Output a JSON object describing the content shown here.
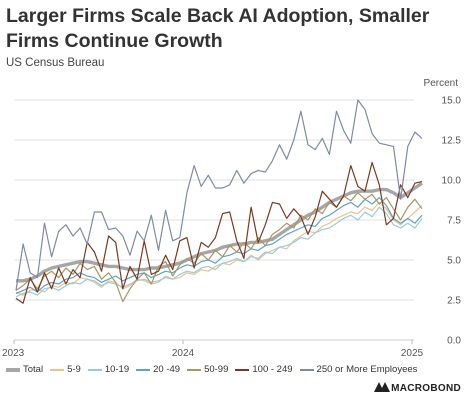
{
  "title": "Larger Firms Scale Back AI Adoption, Smaller Firms Continue Growth",
  "subtitle": "US Census Bureau",
  "unit_label": "Percent",
  "brand": "MACROBOND",
  "chart_data": {
    "type": "line",
    "x_tick_labels": [
      "2023",
      "2024",
      "2025"
    ],
    "ylim": [
      0,
      15
    ],
    "yticks": [
      "0.0",
      "2.5",
      "5.0",
      "7.5",
      "10.0",
      "12.5",
      "15.0"
    ],
    "y_axis_side": "right",
    "grid": true,
    "legend_position": "bottom",
    "series": [
      {
        "name": "Total",
        "color": "#a6a6a6",
        "width": 3.4,
        "values": [
          3.7,
          3.7,
          3.8,
          4.0,
          4.3,
          4.5,
          4.6,
          4.7,
          4.8,
          4.9,
          4.9,
          4.8,
          4.7,
          4.6,
          4.6,
          4.5,
          4.4,
          4.4,
          4.4,
          4.5,
          4.5,
          4.6,
          4.7,
          4.8,
          5.0,
          5.2,
          5.4,
          5.5,
          5.6,
          5.8,
          5.9,
          6.0,
          6.0,
          6.1,
          6.1,
          6.2,
          6.3,
          6.6,
          6.9,
          7.2,
          7.5,
          7.8,
          8.0,
          8.3,
          8.6,
          8.8,
          9.0,
          9.2,
          9.3,
          9.3,
          9.3,
          9.4,
          9.4,
          9.2,
          8.9,
          9.2,
          9.5,
          9.8
        ]
      },
      {
        "name": "5-9",
        "color": "#f0c08a",
        "width": 1.2,
        "values": [
          3.0,
          2.8,
          3.1,
          3.2,
          3.0,
          3.4,
          3.3,
          3.6,
          3.5,
          3.9,
          3.8,
          3.6,
          3.3,
          3.7,
          3.6,
          3.2,
          3.4,
          3.8,
          3.7,
          3.5,
          3.6,
          4.0,
          3.8,
          3.9,
          4.2,
          4.1,
          4.4,
          4.3,
          4.6,
          4.8,
          4.7,
          5.0,
          4.9,
          5.3,
          5.0,
          5.4,
          5.6,
          5.8,
          5.7,
          6.2,
          6.5,
          6.8,
          6.7,
          7.1,
          7.3,
          7.6,
          7.8,
          8.0,
          7.9,
          8.3,
          8.1,
          8.6,
          8.2,
          7.5,
          7.2,
          7.6,
          8.0,
          8.4
        ]
      },
      {
        "name": "10-19",
        "color": "#93cde0",
        "width": 1.2,
        "values": [
          2.7,
          2.9,
          3.0,
          2.8,
          3.2,
          3.3,
          3.1,
          3.4,
          3.6,
          3.5,
          3.8,
          3.7,
          3.4,
          3.6,
          3.5,
          3.3,
          3.5,
          3.7,
          3.8,
          3.6,
          3.7,
          3.9,
          3.8,
          4.1,
          4.3,
          4.2,
          4.5,
          4.6,
          4.4,
          4.8,
          4.9,
          5.1,
          4.9,
          5.2,
          5.1,
          5.5,
          5.4,
          5.8,
          5.9,
          6.1,
          6.4,
          6.3,
          6.7,
          6.9,
          7.0,
          7.3,
          7.6,
          7.8,
          7.5,
          8.0,
          7.7,
          8.3,
          7.9,
          7.2,
          7.0,
          7.3,
          7.0,
          7.6
        ]
      },
      {
        "name": "20 -49",
        "color": "#5da3c9",
        "width": 1.2,
        "values": [
          2.9,
          3.1,
          3.3,
          3.0,
          3.4,
          3.6,
          3.5,
          3.8,
          3.9,
          4.2,
          4.0,
          3.9,
          3.6,
          3.8,
          4.0,
          3.7,
          3.9,
          4.1,
          4.2,
          3.9,
          4.1,
          4.3,
          4.2,
          4.5,
          4.7,
          4.6,
          4.9,
          5.0,
          4.8,
          5.2,
          5.3,
          5.5,
          5.4,
          5.7,
          5.6,
          5.9,
          6.0,
          6.3,
          6.6,
          6.8,
          7.0,
          7.2,
          7.1,
          7.6,
          7.8,
          8.1,
          8.4,
          8.6,
          8.3,
          8.8,
          8.5,
          8.9,
          8.4,
          7.6,
          7.3,
          7.6,
          7.3,
          7.8
        ]
      },
      {
        "name": "50-99",
        "color": "#a89664",
        "width": 1.2,
        "values": [
          3.1,
          3.4,
          3.8,
          3.2,
          4.0,
          4.3,
          3.9,
          4.5,
          4.1,
          4.8,
          4.4,
          4.6,
          3.8,
          4.2,
          3.6,
          2.4,
          3.2,
          3.8,
          4.2,
          3.5,
          4.6,
          4.9,
          4.0,
          4.7,
          5.1,
          4.8,
          5.4,
          5.0,
          5.6,
          5.2,
          5.9,
          5.5,
          6.1,
          5.7,
          6.4,
          5.9,
          6.6,
          6.9,
          7.3,
          7.0,
          7.8,
          7.5,
          8.2,
          7.9,
          8.6,
          8.3,
          9.0,
          8.7,
          9.2,
          8.8,
          9.1,
          8.5,
          8.9,
          8.2,
          7.5,
          8.3,
          8.8,
          8.2
        ]
      },
      {
        "name": "100 - 249",
        "color": "#7a3a20",
        "width": 1.2,
        "values": [
          2.6,
          2.3,
          3.9,
          3.0,
          4.2,
          3.2,
          4.5,
          3.5,
          4.4,
          3.9,
          6.1,
          5.5,
          4.3,
          6.5,
          6.1,
          3.2,
          4.6,
          3.8,
          6.2,
          4.1,
          4.3,
          5.3,
          4.4,
          6.2,
          6.4,
          4.5,
          6.1,
          5.8,
          6.4,
          7.9,
          8.0,
          6.2,
          5.1,
          8.3,
          6.1,
          7.2,
          8.6,
          8.5,
          7.6,
          8.2,
          7.7,
          6.6,
          7.7,
          9.3,
          8.8,
          8.3,
          9.0,
          10.9,
          9.6,
          9.3,
          11.1,
          9.7,
          7.2,
          7.6,
          9.7,
          8.9,
          9.8,
          9.9
        ]
      },
      {
        "name": "250 or More Employees",
        "color": "#7f8aa6",
        "width": 1.2,
        "values": [
          3.1,
          6.0,
          4.2,
          3.9,
          7.3,
          5.2,
          6.8,
          7.2,
          6.5,
          7.0,
          6.0,
          8.0,
          8.0,
          6.9,
          7.0,
          6.5,
          5.3,
          6.8,
          6.2,
          7.8,
          5.6,
          8.1,
          6.2,
          6.4,
          9.2,
          10.9,
          9.6,
          10.3,
          9.5,
          9.5,
          9.7,
          10.6,
          9.8,
          10.4,
          10.6,
          10.5,
          11.2,
          12.2,
          11.3,
          12.5,
          14.3,
          12.2,
          11.9,
          12.6,
          11.6,
          14.3,
          13.1,
          12.3,
          15.0,
          14.4,
          12.9,
          12.3,
          12.2,
          12.1,
          8.8,
          12.1,
          13.0,
          12.6
        ]
      }
    ]
  }
}
